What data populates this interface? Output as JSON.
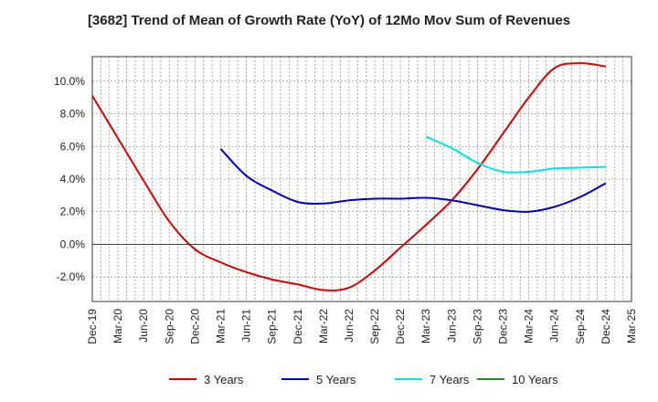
{
  "chart_data": {
    "type": "line",
    "title": "[3682]  Trend of Mean of Growth Rate (YoY) of 12Mo Mov Sum of Revenues",
    "xlabel": "",
    "ylabel": "",
    "x_ticks": [
      "Dec-19",
      "Mar-20",
      "Jun-20",
      "Sep-20",
      "Dec-20",
      "Mar-21",
      "Jun-21",
      "Sep-21",
      "Dec-21",
      "Mar-22",
      "Jun-22",
      "Sep-22",
      "Dec-22",
      "Mar-23",
      "Jun-23",
      "Sep-23",
      "Dec-23",
      "Mar-24",
      "Jun-24",
      "Sep-24",
      "Dec-24",
      "Mar-25"
    ],
    "y_ticks": [
      -2.0,
      0.0,
      2.0,
      4.0,
      6.0,
      8.0,
      10.0
    ],
    "y_tick_labels": [
      "-2.0%",
      "0.0%",
      "2.0%",
      "4.0%",
      "6.0%",
      "8.0%",
      "10.0%"
    ],
    "ylim": [
      -3.5,
      11.5
    ],
    "grid": true,
    "legend_position": "bottom",
    "series": [
      {
        "name": "3 Years",
        "color": "#dd0000",
        "x": [
          0,
          1,
          2,
          3,
          4,
          5,
          6,
          7,
          8,
          9,
          10,
          11,
          12,
          13,
          14,
          15,
          16,
          17,
          18,
          19,
          20
        ],
        "values": [
          9.1,
          6.5,
          3.9,
          1.4,
          -0.3,
          -1.1,
          -1.7,
          -2.15,
          -2.45,
          -2.8,
          -2.65,
          -1.6,
          -0.2,
          1.2,
          2.7,
          4.6,
          6.8,
          9.0,
          10.8,
          11.1,
          10.9
        ]
      },
      {
        "name": "5 Years",
        "color": "#0000cc",
        "x": [
          5,
          6,
          7,
          8,
          9,
          10,
          11,
          12,
          13,
          14,
          15,
          16,
          17,
          18,
          19,
          20
        ],
        "values": [
          5.85,
          4.2,
          3.3,
          2.6,
          2.5,
          2.7,
          2.8,
          2.8,
          2.85,
          2.7,
          2.4,
          2.1,
          2.0,
          2.3,
          2.9,
          3.75
        ]
      },
      {
        "name": "7 Years",
        "color": "#00e5e5",
        "x": [
          13,
          14,
          15,
          16,
          17,
          18,
          19,
          20
        ],
        "values": [
          6.6,
          5.9,
          5.0,
          4.45,
          4.45,
          4.65,
          4.7,
          4.75
        ]
      },
      {
        "name": "10 Years",
        "color": "#228b22",
        "x": [],
        "values": []
      }
    ]
  }
}
